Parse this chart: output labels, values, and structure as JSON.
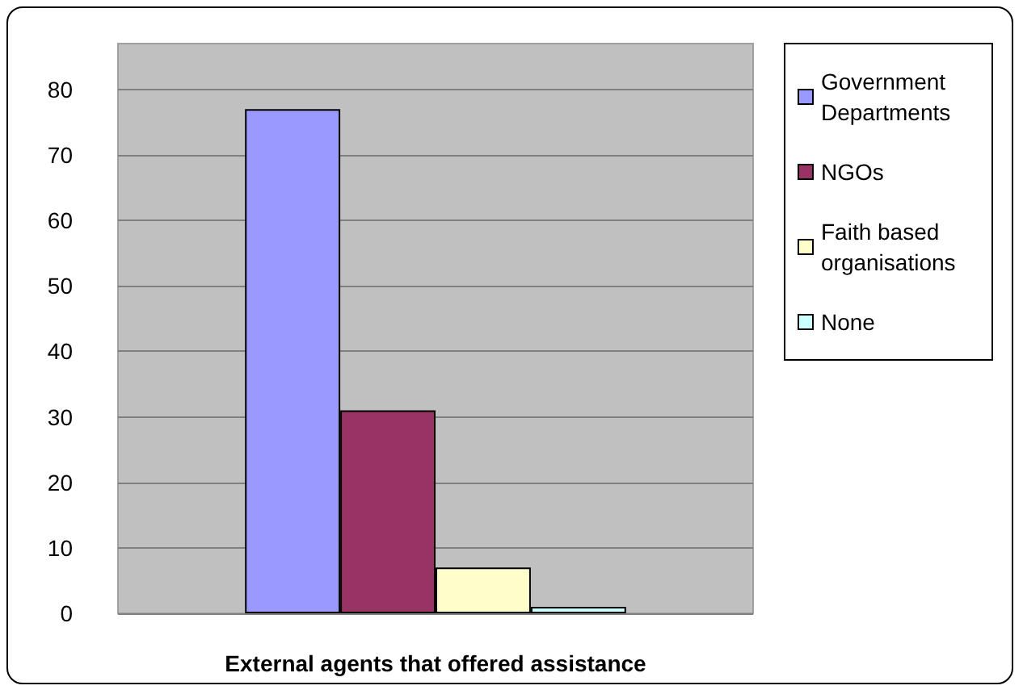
{
  "chart_data": {
    "type": "bar",
    "xlabel": "External agents that offered assistance",
    "categories": [
      null
    ],
    "series": [
      {
        "name": "Government Departments",
        "color": "#9999ff",
        "values": [
          77
        ]
      },
      {
        "name": "NGOs",
        "color": "#993366",
        "values": [
          31
        ]
      },
      {
        "name": "Faith based organisations",
        "color": "#ffffcc",
        "values": [
          7
        ]
      },
      {
        "name": "None",
        "color": "#ccffff",
        "values": [
          1
        ]
      }
    ],
    "ylim": [
      0,
      87
    ],
    "yticks": [
      0,
      10,
      20,
      30,
      40,
      50,
      60,
      70,
      80
    ],
    "grid": "y",
    "legend": "right"
  }
}
